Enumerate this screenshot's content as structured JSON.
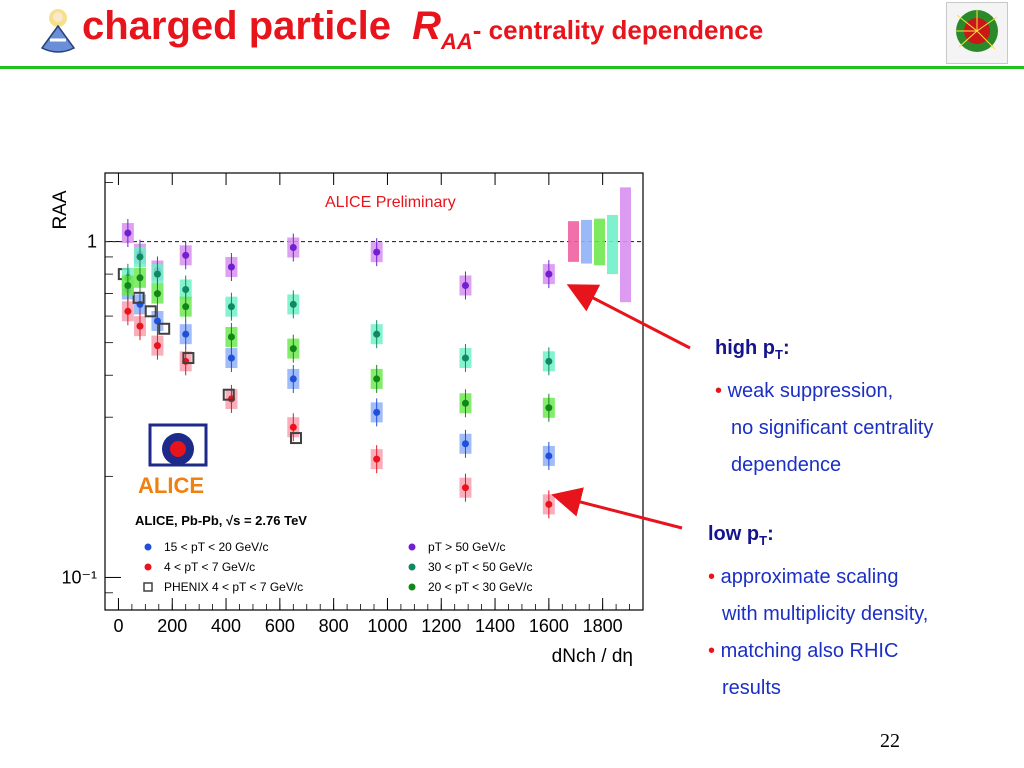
{
  "slide": {
    "title_main": "charged particle ",
    "title_r": "R",
    "title_sub": "AA",
    "title_rest": "- centrality dependence",
    "page_number": "22"
  },
  "annotations": {
    "high_label": "high p",
    "high_sub": "T",
    "high_colon": ":",
    "high_bullet": "•",
    "high_line1": " weak suppression,",
    "high_line2": "no significant centrality",
    "high_line3": "dependence",
    "low_label": "low p",
    "low_sub": "T",
    "low_colon": ":",
    "low_bullet1": "•",
    "low_line1": " approximate scaling",
    "low_line2": "with multiplicity density,",
    "low_bullet2": "•",
    "low_line3": " matching also RHIC",
    "low_line4": "results"
  },
  "chart_data": {
    "type": "scatter",
    "preliminary_text": "ALICE Preliminary",
    "experiment_label": "ALICE",
    "system_label": "ALICE, Pb-Pb, √s = 2.76 TeV",
    "xlabel": "dNch / dη",
    "ylabel": "RAA",
    "xlim": [
      -50,
      1950
    ],
    "ylim": [
      0.08,
      1.6
    ],
    "y_scale": "log",
    "x_ticks": [
      0,
      200,
      400,
      600,
      800,
      1000,
      1200,
      1400,
      1600,
      1800
    ],
    "x_tick_labels": [
      "0",
      "200",
      "400",
      "600",
      "800",
      "1000",
      "1200",
      "1400",
      "1600",
      "1800"
    ],
    "y_ticks": [
      0.1,
      1
    ],
    "y_tick_labels": [
      "10⁻¹",
      "1"
    ],
    "reference_line": 1,
    "legend_position": "bottom",
    "series": [
      {
        "name": "15 < pT < 20 GeV/c",
        "marker": "circle",
        "color": "#2050d8",
        "box_color": "#90b0f8",
        "x": [
          35,
          80,
          145,
          250,
          420,
          650,
          960,
          1290,
          1600
        ],
        "y": [
          0.72,
          0.65,
          0.58,
          0.53,
          0.45,
          0.39,
          0.31,
          0.25,
          0.23
        ]
      },
      {
        "name": "4 < pT < 7 GeV/c",
        "marker": "circle",
        "color": "#e8141c",
        "box_color": "#f8a0b0",
        "x": [
          35,
          80,
          145,
          250,
          420,
          650,
          960,
          1290,
          1600
        ],
        "y": [
          0.62,
          0.56,
          0.49,
          0.44,
          0.34,
          0.28,
          0.225,
          0.185,
          0.165
        ]
      },
      {
        "name": "PHENIX 4 < pT < 7 GeV/c",
        "marker": "open-square",
        "color": "#404040",
        "box_color": "#a0a0a0",
        "x": [
          20,
          75,
          120,
          170,
          260,
          410,
          660
        ],
        "y": [
          0.8,
          0.68,
          0.62,
          0.55,
          0.45,
          0.35,
          0.26
        ]
      },
      {
        "name": "pT > 50 GeV/c",
        "marker": "circle",
        "color": "#7020d0",
        "box_color": "#d890f0",
        "x": [
          35,
          80,
          145,
          250,
          420,
          650,
          960,
          1290,
          1600
        ],
        "y": [
          1.06,
          0.92,
          0.82,
          0.91,
          0.84,
          0.96,
          0.93,
          0.74,
          0.8
        ]
      },
      {
        "name": "30 < pT < 50 GeV/c",
        "marker": "circle",
        "color": "#108860",
        "box_color": "#70f0c8",
        "x": [
          35,
          80,
          145,
          250,
          420,
          650,
          960,
          1290,
          1600
        ],
        "y": [
          0.78,
          0.9,
          0.8,
          0.72,
          0.64,
          0.65,
          0.53,
          0.45,
          0.44
        ]
      },
      {
        "name": "20 < pT < 30 GeV/c",
        "marker": "circle",
        "color": "#108818",
        "box_color": "#70e850",
        "x": [
          35,
          80,
          145,
          250,
          420,
          650,
          960,
          1290,
          1600
        ],
        "y": [
          0.74,
          0.78,
          0.7,
          0.64,
          0.52,
          0.48,
          0.39,
          0.33,
          0.32
        ]
      }
    ],
    "normalization_bars": [
      {
        "color": "#f060a0",
        "low": 0.87,
        "high": 1.15
      },
      {
        "color": "#90b0f8",
        "low": 0.86,
        "high": 1.16
      },
      {
        "color": "#70e850",
        "low": 0.85,
        "high": 1.17
      },
      {
        "color": "#70f0c8",
        "low": 0.8,
        "high": 1.2
      },
      {
        "color": "#d890f0",
        "low": 0.66,
        "high": 1.45
      }
    ]
  }
}
